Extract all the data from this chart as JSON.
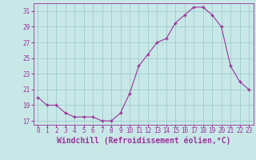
{
  "x": [
    0,
    1,
    2,
    3,
    4,
    5,
    6,
    7,
    8,
    9,
    10,
    11,
    12,
    13,
    14,
    15,
    16,
    17,
    18,
    19,
    20,
    21,
    22,
    23
  ],
  "y": [
    20.0,
    19.0,
    19.0,
    18.0,
    17.5,
    17.5,
    17.5,
    17.0,
    17.0,
    18.0,
    20.5,
    24.0,
    25.5,
    27.0,
    27.5,
    29.5,
    30.5,
    31.5,
    31.5,
    30.5,
    29.0,
    24.0,
    22.0,
    21.0
  ],
  "line_color": "#993399",
  "marker": "+",
  "bg_color": "#c8e8e8",
  "grid_color": "#a0cccc",
  "xlabel": "Windchill (Refroidissement éolien,°C)",
  "ylim": [
    16.5,
    32.0
  ],
  "yticks": [
    17,
    19,
    21,
    23,
    25,
    27,
    29,
    31
  ],
  "xticks": [
    0,
    1,
    2,
    3,
    4,
    5,
    6,
    7,
    8,
    9,
    10,
    11,
    12,
    13,
    14,
    15,
    16,
    17,
    18,
    19,
    20,
    21,
    22,
    23
  ],
  "tick_color": "#993399",
  "label_color": "#993399",
  "font_size": 5.5,
  "xlabel_fontsize": 7.0
}
